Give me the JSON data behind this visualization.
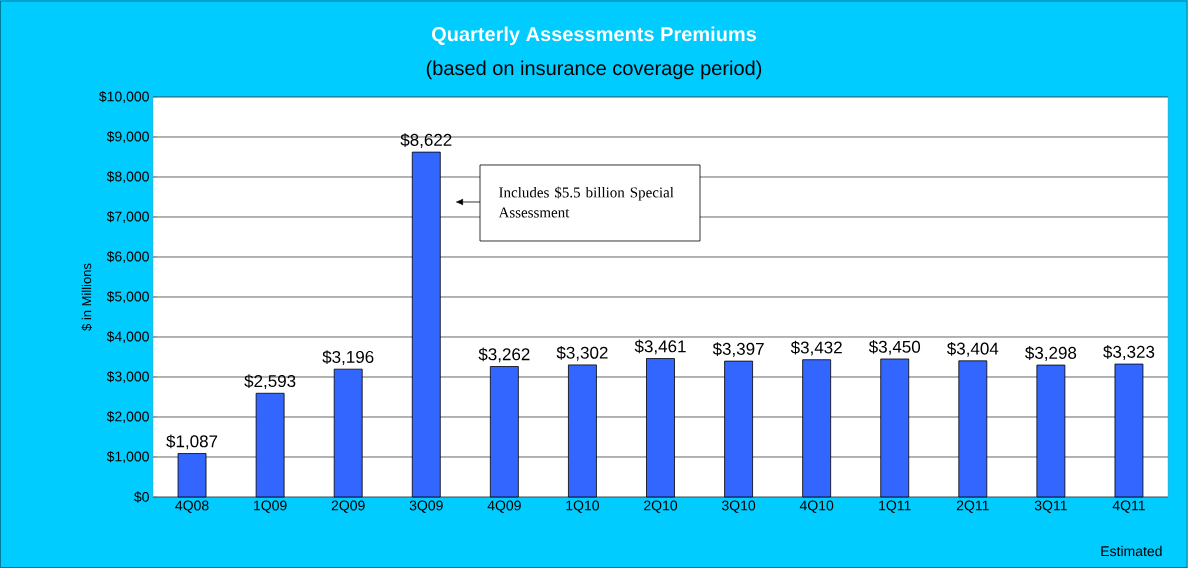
{
  "chart_data": {
    "type": "bar",
    "title": "Quarterly Assessments Premiums",
    "subtitle": "(based on insurance coverage period)",
    "ylabel": "$ in Millions",
    "categories": [
      "4Q08",
      "1Q09",
      "2Q09",
      "3Q09",
      "4Q09",
      "1Q10",
      "2Q10",
      "3Q10",
      "4Q10",
      "1Q11",
      "2Q11",
      "3Q11",
      "4Q11"
    ],
    "values": [
      1087,
      2593,
      3196,
      8622,
      3262,
      3302,
      3461,
      3397,
      3432,
      3450,
      3404,
      3298,
      3323
    ],
    "value_labels": [
      "$1,087",
      "$2,593",
      "$3,196",
      "$8,622",
      "$3,262",
      "$3,302",
      "$3,461",
      "$3,397",
      "$3,432",
      "$3,450",
      "$3,404",
      "$3,298",
      "$3,323"
    ],
    "color": "#3366ff",
    "ylim": [
      0,
      10000
    ],
    "yticks": [
      {
        "value": 0,
        "label": "$0"
      },
      {
        "value": 1000,
        "label": "$1,000"
      },
      {
        "value": 2000,
        "label": "$2,000"
      },
      {
        "value": 3000,
        "label": "$3,000"
      },
      {
        "value": 4000,
        "label": "$4,000"
      },
      {
        "value": 5000,
        "label": "$5,000"
      },
      {
        "value": 6000,
        "label": "$6,000"
      },
      {
        "value": 7000,
        "label": "$7,000"
      },
      {
        "value": 8000,
        "label": "$8,000"
      },
      {
        "value": 9000,
        "label": "$9,000"
      },
      {
        "value": 10000,
        "label": "$10,000"
      }
    ],
    "grid": "y",
    "annotations": [
      "Includes $5.5 billion Special Assessment",
      "Estimated"
    ]
  }
}
